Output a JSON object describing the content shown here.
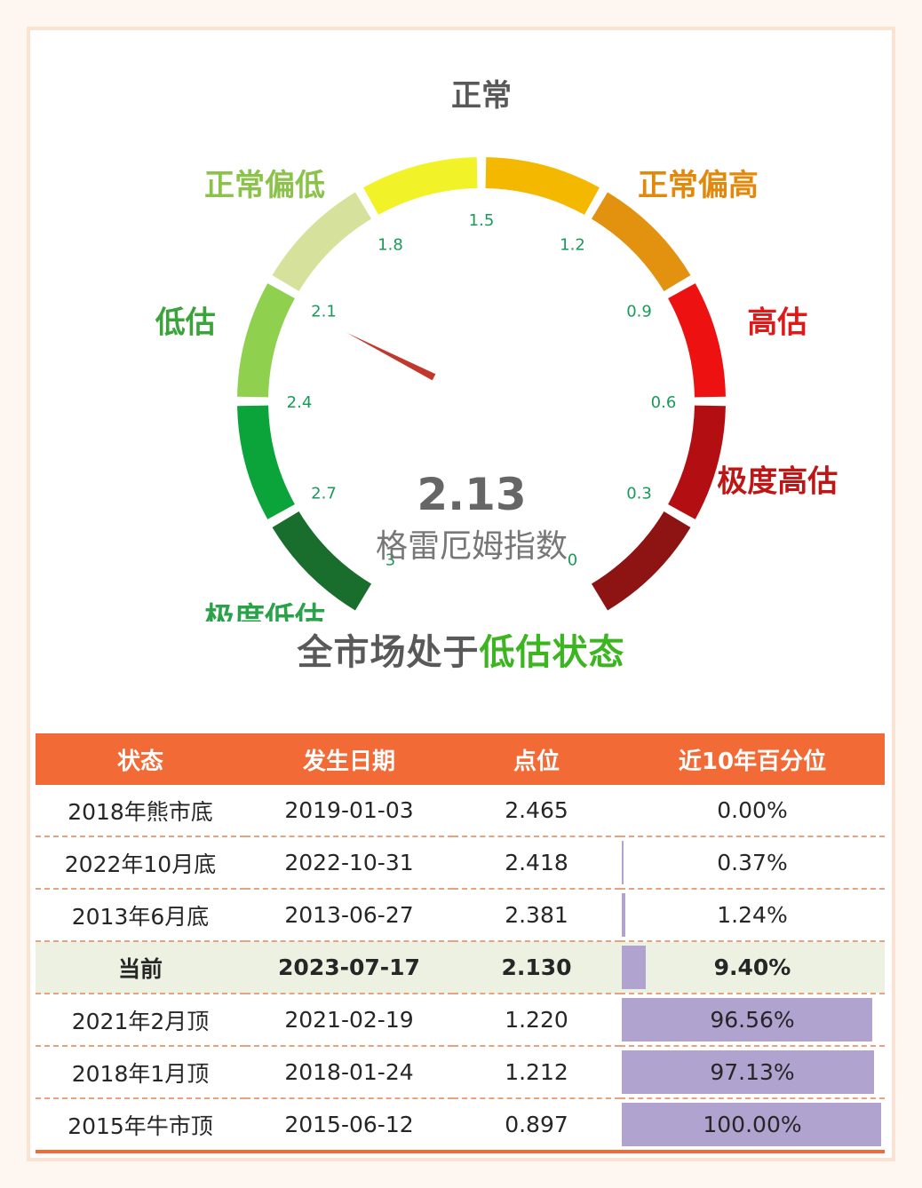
{
  "colors": {
    "header_bg": "#f26a35",
    "highlight_green": "#3cb521",
    "needle": "#c0392b",
    "pct_bar": "#b1a3cf",
    "current_row_bg": "#edf1e1"
  },
  "chart_data": {
    "type": "gauge",
    "value": 2.13,
    "value_label": "2.13",
    "label": "格雷厄姆指数",
    "min": 0,
    "max": 3,
    "reversed": true,
    "ticks": [
      "3",
      "2.7",
      "2.4",
      "2.1",
      "1.8",
      "1.5",
      "1.2",
      "0.9",
      "0.6",
      "0.3",
      "0"
    ],
    "zones": [
      {
        "name": "极度低估",
        "color": "#1a6e2d",
        "label_color": "#2aa24a"
      },
      {
        "name": "",
        "color": "#0aa43a"
      },
      {
        "name": "低估",
        "color": "#8fd14f",
        "label_color": "#3aa33a"
      },
      {
        "name": "正常偏低",
        "color": "#d6e29c",
        "label_color": "#8bc34a"
      },
      {
        "name": "正常",
        "color": "#f2f228",
        "label_color": "#595959"
      },
      {
        "name": "",
        "color": "#f5b800"
      },
      {
        "name": "正常偏高",
        "color": "#e2920e",
        "label_color": "#e2890b"
      },
      {
        "name": "高估",
        "color": "#ee1111",
        "label_color": "#e01818"
      },
      {
        "name": "极度高估",
        "color": "#b30f12",
        "label_color": "#c01515"
      },
      {
        "name": "",
        "color": "#8e1414"
      }
    ]
  },
  "gauge": {
    "value_text": "2.13",
    "title": "格雷厄姆指数"
  },
  "headline": {
    "prefix": "全市场处于",
    "highlight": "低估状态"
  },
  "table": {
    "headers": [
      "状态",
      "发生日期",
      "点位",
      "近10年百分位"
    ],
    "rows": [
      {
        "state": "2018年熊市底",
        "date": "2019-01-03",
        "level": "2.465",
        "pct": "0.00%",
        "pct_value": 0.0,
        "current": false
      },
      {
        "state": "2022年10月底",
        "date": "2022-10-31",
        "level": "2.418",
        "pct": "0.37%",
        "pct_value": 0.37,
        "current": false
      },
      {
        "state": "2013年6月底",
        "date": "2013-06-27",
        "level": "2.381",
        "pct": "1.24%",
        "pct_value": 1.24,
        "current": false
      },
      {
        "state": "当前",
        "date": "2023-07-17",
        "level": "2.130",
        "pct": "9.40%",
        "pct_value": 9.4,
        "current": true
      },
      {
        "state": "2021年2月顶",
        "date": "2021-02-19",
        "level": "1.220",
        "pct": "96.56%",
        "pct_value": 96.56,
        "current": false
      },
      {
        "state": "2018年1月顶",
        "date": "2018-01-24",
        "level": "1.212",
        "pct": "97.13%",
        "pct_value": 97.13,
        "current": false
      },
      {
        "state": "2015年牛市顶",
        "date": "2015-06-12",
        "level": "0.897",
        "pct": "100.00%",
        "pct_value": 100.0,
        "current": false
      }
    ]
  }
}
